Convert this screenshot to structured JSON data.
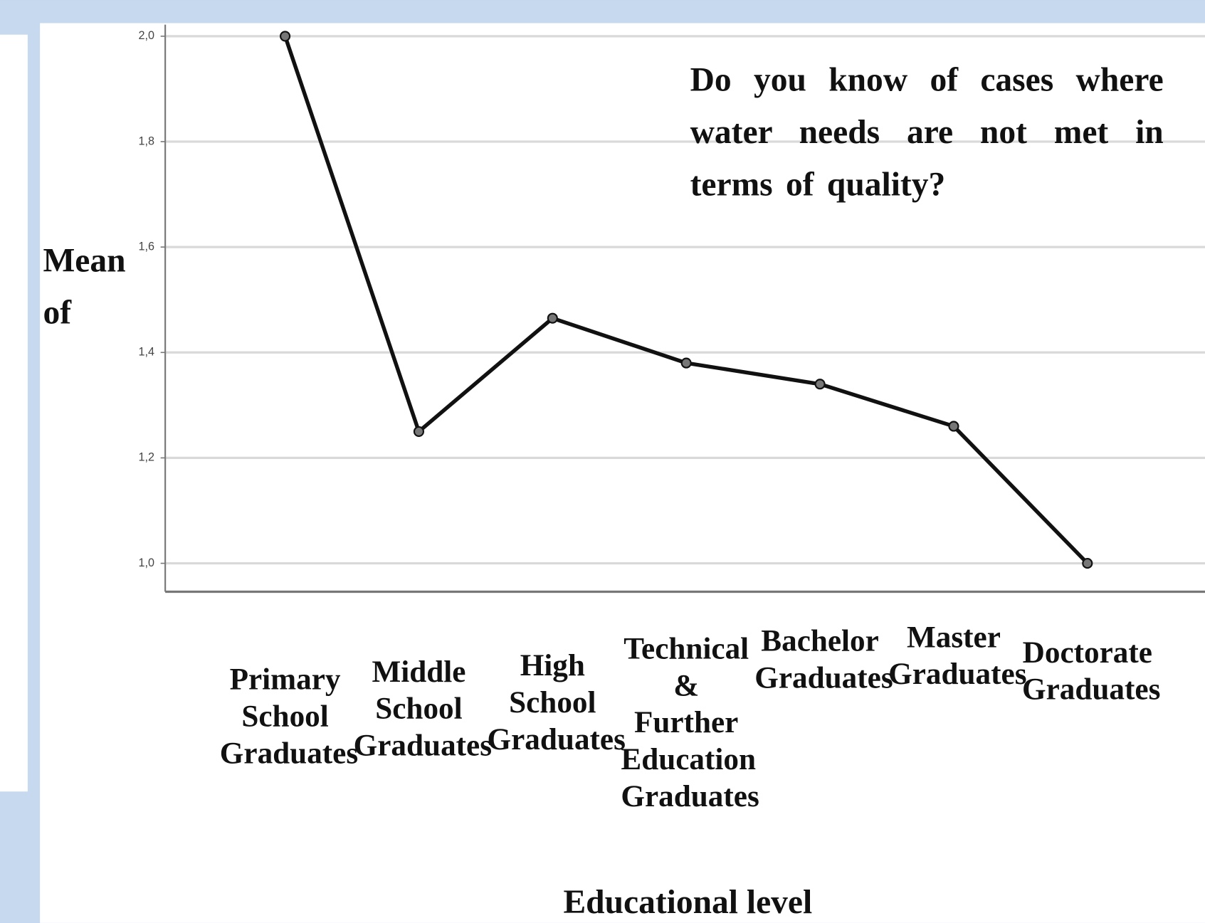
{
  "chart_data": {
    "type": "line",
    "annotation": "Do you know of cases where water needs are not met in terms of quality?",
    "y_label": "Mean of",
    "x_label": "Educational level",
    "categories": [
      "Primary School Graduates",
      "Middle School Graduates",
      "High School Graduates",
      "Technical & Further Education Graduates",
      "Bachelor Graduates",
      "Master Graduates",
      "Doctorate Graduates"
    ],
    "series": [
      {
        "name": "Mean",
        "color": "#111111",
        "values": [
          2.0,
          1.25,
          1.465,
          1.38,
          1.34,
          1.26,
          1.0
        ]
      }
    ],
    "ylim": [
      1.0,
      2.0
    ],
    "yticks": [
      {
        "value": 1.0,
        "label": "1,0"
      },
      {
        "value": 1.2,
        "label": "1,2"
      },
      {
        "value": 1.4,
        "label": "1,4"
      },
      {
        "value": 1.6,
        "label": "1,6"
      },
      {
        "value": 1.8,
        "label": "1,8"
      },
      {
        "value": 2.0,
        "label": "2,0"
      }
    ],
    "grid": true
  }
}
